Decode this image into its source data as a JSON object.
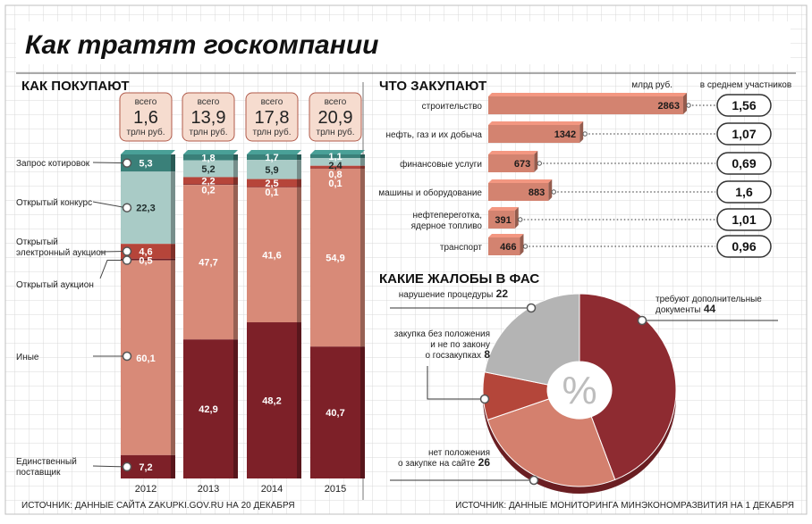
{
  "title": "Как тратят госкомпании",
  "colors": {
    "quotes": "#3a8079",
    "open_contest": "#a9cbc6",
    "e_auction": "#b6453a",
    "open_auction": "#6f1e24",
    "other": "#d88a78",
    "single_supplier": "#7d2028",
    "bar_salmon": "#d38370",
    "pie_grey": "#b4b4b4",
    "pie_dark": "#8e2b31",
    "pie_red": "#b4463a",
    "pie_salmon": "#d4806e"
  },
  "chart_data": [
    {
      "type": "bar",
      "subtype": "stacked",
      "section_title": "КАК ПОКУПАЮТ",
      "categories": [
        "2012",
        "2013",
        "2014",
        "2015"
      ],
      "totals": [
        {
          "top": "всего",
          "value": "1,6",
          "unit": "трлн руб."
        },
        {
          "top": "всего",
          "value": "13,9",
          "unit": "трлн руб."
        },
        {
          "top": "всего",
          "value": "17,8",
          "unit": "трлн руб."
        },
        {
          "top": "всего",
          "value": "20,9",
          "unit": "трлн руб."
        }
      ],
      "legend_labels": [
        [
          "Запрос котировок"
        ],
        [
          "Открытый конкурс"
        ],
        [
          "Открытый",
          "электронный аукцион"
        ],
        [
          "Открытый аукцион"
        ],
        [
          "Иные"
        ],
        [
          "Единственный",
          "поставщик"
        ]
      ],
      "series": [
        {
          "name": "Запрос котировок",
          "values": [
            5.3,
            1.8,
            1.7,
            1.1
          ],
          "labels": [
            "5,3",
            "1,8",
            "1,7",
            "1,1"
          ]
        },
        {
          "name": "Открытый конкурс",
          "values": [
            22.3,
            5.2,
            5.9,
            2.4
          ],
          "labels": [
            "22,3",
            "5,2",
            "5,9",
            "2,4"
          ]
        },
        {
          "name": "Открытый электронный аукцион",
          "values": [
            4.6,
            2.2,
            2.5,
            0.8
          ],
          "labels": [
            "4,6",
            "2,2",
            "2,5",
            "0,8"
          ]
        },
        {
          "name": "Открытый аукцион",
          "values": [
            0.5,
            0.2,
            0.1,
            0.1
          ],
          "labels": [
            "0,5",
            "0,2",
            "0,1",
            "0,1"
          ]
        },
        {
          "name": "Иные",
          "values": [
            60.1,
            47.7,
            41.6,
            54.9
          ],
          "labels": [
            "60,1",
            "47,7",
            "41,6",
            "54,9"
          ]
        },
        {
          "name": "Единственный поставщик",
          "values": [
            7.2,
            42.9,
            48.2,
            40.7
          ],
          "labels": [
            "7,2",
            "42,9",
            "48,2",
            "40,7"
          ]
        }
      ],
      "source": "ИСТОЧНИК: ДАННЫЕ САЙТА ZAKUPKI.GOV.RU НА 20 ДЕКАБРЯ"
    },
    {
      "type": "bar",
      "orientation": "horizontal",
      "section_title": "ЧТО ЗАКУПАЮТ",
      "value_header": "млрд руб.",
      "participants_header": "в среднем участников",
      "xlim": [
        0,
        2863
      ],
      "categories": [
        [
          "строительство"
        ],
        [
          "нефть, газ и их добыча"
        ],
        [
          "финансовые услуги"
        ],
        [
          "машины и оборудование"
        ],
        [
          "нефтепереготка,",
          "ядерное топливо"
        ],
        [
          "транспорт"
        ]
      ],
      "values": [
        2863,
        1342,
        673,
        883,
        391,
        466
      ],
      "value_labels": [
        "2863",
        "1342",
        "673",
        "883",
        "391",
        "466"
      ],
      "participants": [
        "1,56",
        "1,07",
        "0,69",
        "1,6",
        "1,01",
        "0,96"
      ]
    },
    {
      "type": "pie",
      "subtype": "donut",
      "section_title": "КАКИЕ ЖАЛОБЫ В ФАС",
      "center_label": "%",
      "slices": [
        {
          "label": [
            "требуют дополнительные",
            "документы"
          ],
          "value": 44,
          "value_label": "44"
        },
        {
          "label": [
            "нет положения",
            "о закупке на сайте"
          ],
          "value": 26,
          "value_label": "26"
        },
        {
          "label": [
            "закупка без положения",
            "и не по закону",
            "о госзакупках"
          ],
          "value": 8,
          "value_label": "8"
        },
        {
          "label": [
            "нарушение процедуры"
          ],
          "value": 22,
          "value_label": "22"
        }
      ],
      "source": "ИСТОЧНИК: ДАННЫЕ МОНИТОРИНГА МИНЭКОНОМРАЗВИТИЯ НА 1 ДЕКАБРЯ"
    }
  ]
}
